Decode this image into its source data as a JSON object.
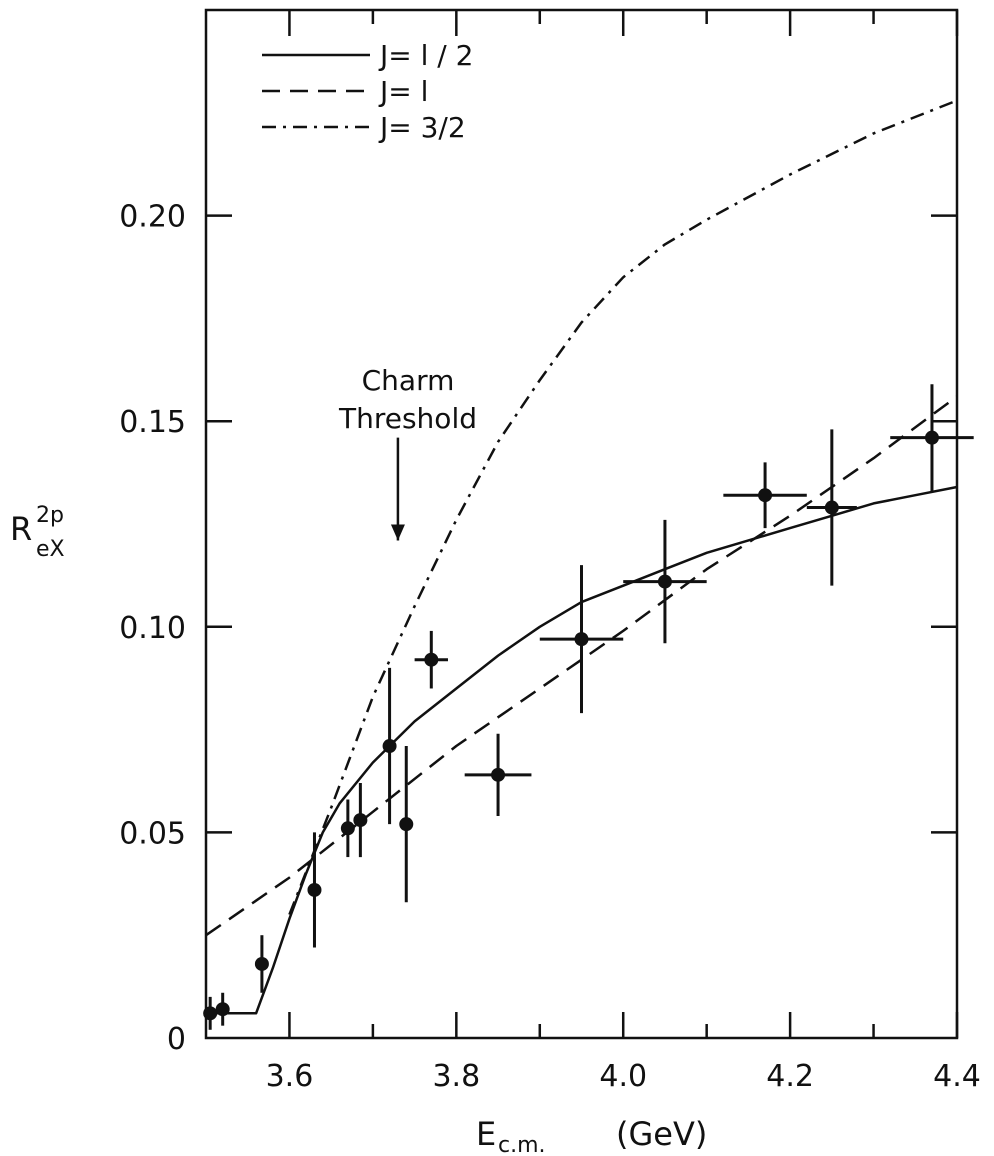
{
  "chart_data": {
    "type": "line",
    "xlabel": {
      "main": "E",
      "sub": "c.m.",
      "unit": "(GeV)"
    },
    "ylabel": {
      "main": "R",
      "sup": "2p",
      "sub": "eX"
    },
    "xlim": [
      3.5,
      4.4
    ],
    "ylim": [
      0,
      0.25
    ],
    "x_ticks": [
      3.6,
      3.8,
      4.0,
      4.2,
      4.4
    ],
    "x_tick_labels": [
      "3.6",
      "3.8",
      "4.0",
      "4.2",
      "4.4"
    ],
    "x_minor_ticks": [
      3.7,
      3.9,
      4.1,
      4.3
    ],
    "y_ticks": [
      0,
      0.05,
      0.1,
      0.15,
      0.2
    ],
    "y_tick_labels": [
      "0",
      "0.05",
      "0.10",
      "0.15",
      "0.20"
    ],
    "legend": {
      "position": "top-left",
      "entries": [
        {
          "label": "J= l / 2",
          "style": "solid"
        },
        {
          "label": "J= l",
          "style": "dashed"
        },
        {
          "label": "J= 3/2",
          "style": "dash-dot"
        }
      ]
    },
    "annotation": {
      "lines": [
        "Charm",
        "Threshold"
      ],
      "arrow_x": 3.73,
      "arrow_y_top": 0.146,
      "arrow_y_bottom": 0.121
    },
    "series": [
      {
        "style": "solid",
        "x": [
          3.5,
          3.56,
          3.58,
          3.6,
          3.62,
          3.64,
          3.66,
          3.7,
          3.75,
          3.8,
          3.85,
          3.9,
          3.95,
          4.0,
          4.05,
          4.1,
          4.15,
          4.2,
          4.25,
          4.3,
          4.35,
          4.4
        ],
        "y": [
          0.006,
          0.006,
          0.017,
          0.029,
          0.04,
          0.05,
          0.057,
          0.067,
          0.077,
          0.085,
          0.093,
          0.1,
          0.106,
          0.11,
          0.114,
          0.118,
          0.121,
          0.124,
          0.127,
          0.13,
          0.132,
          0.134
        ]
      },
      {
        "style": "dashed",
        "x": [
          3.5,
          3.6,
          3.7,
          3.8,
          3.9,
          4.0,
          4.1,
          4.2,
          4.3,
          4.4
        ],
        "y": [
          0.025,
          0.039,
          0.055,
          0.071,
          0.085,
          0.099,
          0.114,
          0.127,
          0.141,
          0.156
        ]
      },
      {
        "style": "dash-dot",
        "x": [
          3.6,
          3.65,
          3.7,
          3.75,
          3.8,
          3.85,
          3.9,
          3.95,
          4.0,
          4.05,
          4.1,
          4.2,
          4.3,
          4.4
        ],
        "y": [
          0.03,
          0.056,
          0.083,
          0.105,
          0.126,
          0.145,
          0.16,
          0.174,
          0.185,
          0.193,
          0.199,
          0.21,
          0.22,
          0.228
        ]
      }
    ],
    "data_points": [
      {
        "x": 3.505,
        "y": 0.006,
        "xerr": 0.0,
        "yerr": 0.004
      },
      {
        "x": 3.52,
        "y": 0.007,
        "xerr": 0.0,
        "yerr": 0.004
      },
      {
        "x": 3.567,
        "y": 0.018,
        "xerr": 0.0,
        "yerr": 0.007
      },
      {
        "x": 3.63,
        "y": 0.036,
        "xerr": 0.0,
        "yerr": 0.014
      },
      {
        "x": 3.67,
        "y": 0.051,
        "xerr": 0.0,
        "yerr": 0.007
      },
      {
        "x": 3.685,
        "y": 0.053,
        "xerr": 0.0,
        "yerr": 0.009
      },
      {
        "x": 3.72,
        "y": 0.071,
        "xerr": 0.0,
        "yerr": 0.019
      },
      {
        "x": 3.74,
        "y": 0.052,
        "xerr": 0.0,
        "yerr": 0.019
      },
      {
        "x": 3.77,
        "y": 0.092,
        "xerr": 0.02,
        "yerr": 0.007
      },
      {
        "x": 3.85,
        "y": 0.064,
        "xerr": 0.04,
        "yerr": 0.01
      },
      {
        "x": 3.95,
        "y": 0.097,
        "xerr": 0.05,
        "yerr": 0.018
      },
      {
        "x": 4.05,
        "y": 0.111,
        "xerr": 0.05,
        "yerr": 0.015
      },
      {
        "x": 4.17,
        "y": 0.132,
        "xerr": 0.05,
        "yerr": 0.008
      },
      {
        "x": 4.25,
        "y": 0.129,
        "xerr": 0.03,
        "yerr": 0.019
      },
      {
        "x": 4.37,
        "y": 0.146,
        "xerr": 0.05,
        "yerr": 0.013
      }
    ]
  }
}
